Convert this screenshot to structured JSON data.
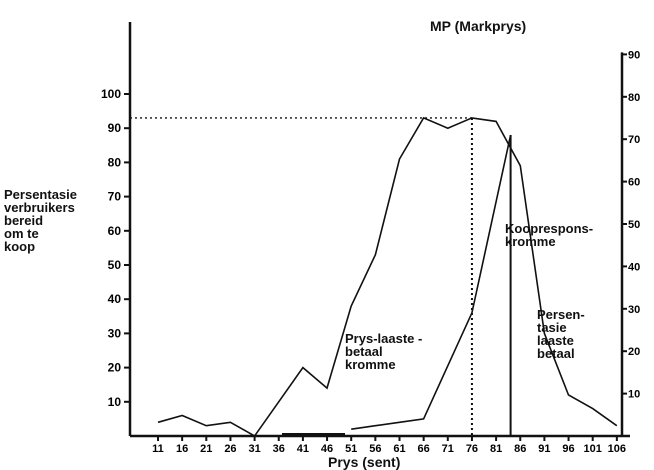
{
  "chart_data": {
    "type": "line",
    "title": "",
    "xlabel": "Prys (sent)",
    "ylabel": "Persentasie\nverbruikers\nbereid\nom te\nkoop",
    "categories": [
      "11",
      "16",
      "21",
      "26",
      "31",
      "36",
      "41",
      "46",
      "51",
      "56",
      "61",
      "66",
      "71",
      "76",
      "81",
      "86",
      "91",
      "96",
      "101",
      "106"
    ],
    "y_ticks": [
      "10",
      "20",
      "30",
      "40",
      "50",
      "60",
      "70",
      "80",
      "90",
      "100"
    ],
    "ylim": [
      0,
      100
    ],
    "right_axis_ticks": [
      "10",
      "20",
      "30",
      "40",
      "50",
      "60",
      "70",
      "80",
      "90"
    ],
    "right_axis_ylim": [
      0,
      90
    ],
    "series": [
      {
        "name": "Prys-laaste-betaal kromme",
        "x": [
          11,
          16,
          21,
          26,
          31,
          41,
          46,
          51,
          56,
          61,
          66,
          71,
          76,
          81,
          86,
          91,
          96,
          101,
          106
        ],
        "values": [
          4,
          6,
          3,
          4,
          0,
          20,
          14,
          38,
          53,
          81,
          93,
          90,
          93,
          92,
          79,
          30,
          12,
          8,
          3
        ]
      },
      {
        "name": "Kooprespons-kromme",
        "x": [
          51,
          56,
          61,
          66,
          76,
          84
        ],
        "values": [
          2,
          3,
          4,
          5,
          36,
          88
        ]
      }
    ],
    "annotations": {
      "mp": "MP (Markprys)",
      "mp_value": 93,
      "mp_x": 76,
      "kooprespons": "Kooprespons-\nkromme",
      "persentasie": "Persen-\ntasie\nlaaste\nbetaal",
      "prys_kromme": "Prys-laaste -\nbetaal\nkromme"
    }
  }
}
